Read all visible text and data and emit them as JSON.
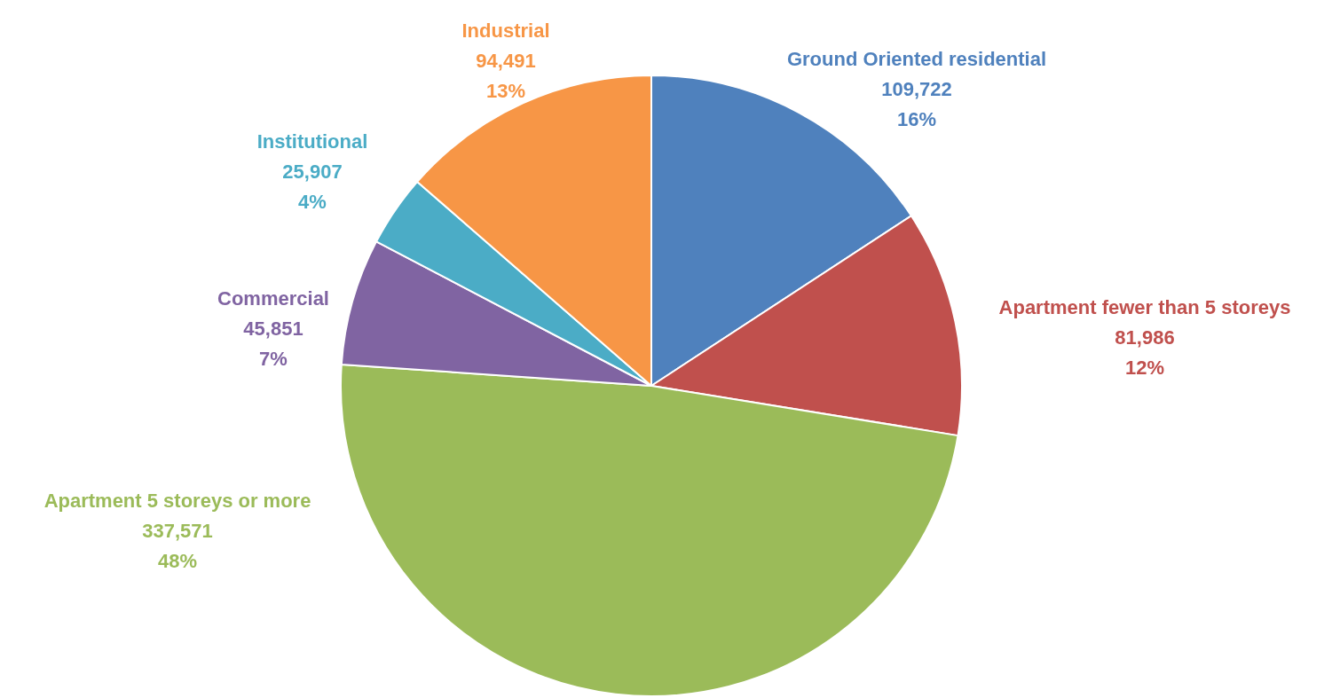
{
  "chart_data": {
    "type": "pie",
    "categories": [
      "Ground Oriented residential",
      "Apartment fewer than 5 storeys",
      "Apartment 5 storeys or more",
      "Commercial",
      "Institutional",
      "Industrial"
    ],
    "values": [
      109722,
      81986,
      337571,
      45851,
      25907,
      94491
    ],
    "colors": [
      "#4f81bd",
      "#c0504d",
      "#9bbb59",
      "#8064a2",
      "#4bacc6",
      "#f79646"
    ],
    "value_labels": [
      "109,722\n16%",
      "81,986\n12%",
      "337,571\n48%",
      "45,851\n7%",
      "25,907\n4%",
      "94,491\n13%"
    ],
    "legend": false
  }
}
